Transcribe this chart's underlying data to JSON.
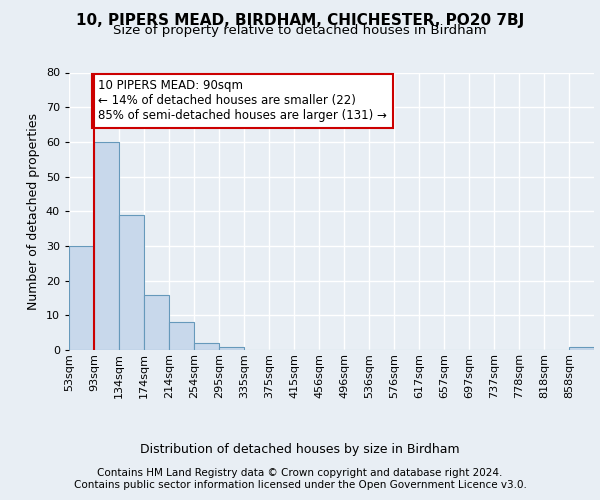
{
  "title1": "10, PIPERS MEAD, BIRDHAM, CHICHESTER, PO20 7BJ",
  "title2": "Size of property relative to detached houses in Birdham",
  "xlabel": "Distribution of detached houses by size in Birdham",
  "ylabel": "Number of detached properties",
  "bin_labels": [
    "53sqm",
    "93sqm",
    "134sqm",
    "174sqm",
    "214sqm",
    "254sqm",
    "295sqm",
    "335sqm",
    "375sqm",
    "415sqm",
    "456sqm",
    "496sqm",
    "536sqm",
    "576sqm",
    "617sqm",
    "657sqm",
    "697sqm",
    "737sqm",
    "778sqm",
    "818sqm",
    "858sqm"
  ],
  "bar_heights": [
    30,
    60,
    39,
    16,
    8,
    2,
    1,
    0,
    0,
    0,
    0,
    0,
    0,
    0,
    0,
    0,
    0,
    0,
    0,
    0,
    1
  ],
  "bar_color": "#c8d8eb",
  "bar_edge_color": "#6699bb",
  "property_bin_index": 1,
  "property_line_color": "#cc0000",
  "annotation_line1": "10 PIPERS MEAD: 90sqm",
  "annotation_line2": "← 14% of detached houses are smaller (22)",
  "annotation_line3": "85% of semi-detached houses are larger (131) →",
  "annotation_box_color": "#ffffff",
  "annotation_box_edge_color": "#cc0000",
  "ylim": [
    0,
    80
  ],
  "yticks": [
    0,
    10,
    20,
    30,
    40,
    50,
    60,
    70,
    80
  ],
  "footer1": "Contains HM Land Registry data © Crown copyright and database right 2024.",
  "footer2": "Contains public sector information licensed under the Open Government Licence v3.0.",
  "bg_color": "#e8eef4",
  "plot_bg_color": "#e8eef4",
  "grid_color": "#ffffff",
  "title1_fontsize": 11,
  "title2_fontsize": 9.5,
  "axis_label_fontsize": 9,
  "tick_fontsize": 8,
  "footer_fontsize": 7.5,
  "annotation_fontsize": 8.5
}
